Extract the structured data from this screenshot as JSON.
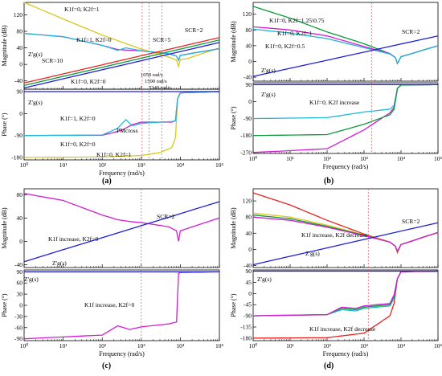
{
  "colors": {
    "red": "#e8231f",
    "green": "#0b9a38",
    "blue": "#1f1fd6",
    "magenta": "#d41cd4",
    "cyan": "#20b8d6",
    "yellow": "#d8c81e",
    "guide": "#e05050"
  },
  "chart_data": [
    {
      "panel": "(a)",
      "type": "line",
      "magnitude": {
        "ylabel": "Magnitude (dB)",
        "ylim": [
          -60,
          150
        ],
        "yticks": [
          "-40",
          "0",
          "40",
          "80",
          "120"
        ],
        "annotations": [
          "K1f=0, K2f=1",
          "K1f=1, K2f=0",
          "SCR=5",
          "SCR=2",
          "SCR=10",
          "Z'g(s)",
          "K1f=0, K2f=0",
          "1050 rad/s",
          "1590 rad/s",
          "3340 rad/s"
        ],
        "series": [
          {
            "name": "K1f=0, K2f=1",
            "color": "yellow",
            "x": [
              1,
              10,
              100,
              1000,
              5000,
              8000,
              9000,
              10000,
              15000,
              100000
            ],
            "y": [
              150,
              110,
              71,
              37,
              18,
              10,
              -5,
              12,
              14,
              40
            ]
          },
          {
            "name": "K1f=0, K2f=0",
            "color": "magenta",
            "x": [
              1,
              10,
              100,
              250,
              500,
              1000,
              5000,
              8000,
              9000,
              10000,
              100000
            ],
            "y": [
              75,
              67,
              46,
              36,
              34,
              33,
              26,
              20,
              10,
              22,
              38
            ]
          },
          {
            "name": "K1f=1, K2f=0",
            "color": "cyan",
            "x": [
              1,
              10,
              100,
              250,
              400,
              1000,
              5000,
              8000,
              9000,
              10000,
              100000
            ],
            "y": [
              75,
              67,
              46,
              34,
              40,
              33,
              26,
              20,
              10,
              22,
              38
            ]
          },
          {
            "name": "SCR=2",
            "color": "red",
            "x": [
              1,
              100000
            ],
            "y": [
              -45,
              65
            ]
          },
          {
            "name": "SCR=5",
            "color": "green",
            "x": [
              1,
              100000
            ],
            "y": [
              -51,
              59
            ]
          },
          {
            "name": "SCR=10",
            "color": "blue",
            "x": [
              1,
              100000
            ],
            "y": [
              -57,
              53
            ]
          }
        ]
      },
      "phase": {
        "ylabel": "Phase (°)",
        "ylim": [
          -190,
          100
        ],
        "yticks": [
          "-180",
          "-90",
          "0",
          "90"
        ],
        "xlabel": "Frequency (rad/s)",
        "annotations": [
          "Z'g(s)",
          "K1f=1, K2f=0",
          "PMcross",
          "K1f=0, K2f=0",
          "K1f=0, K2f=1"
        ],
        "series": [
          {
            "name": "K1f=0, K2f=1",
            "color": "yellow",
            "x": [
              1,
              100,
              1000,
              3000,
              6000,
              7500,
              8500,
              10000,
              100000
            ],
            "y": [
              -180,
              -178,
              -172,
              -160,
              -140,
              -100,
              60,
              85,
              90
            ]
          },
          {
            "name": "K1f=0, K2f=0",
            "color": "magenta",
            "x": [
              1,
              100,
              300,
              600,
              1000,
              3000,
              6000,
              7500,
              8500,
              10000,
              100000
            ],
            "y": [
              -90,
              -89,
              -70,
              -45,
              -35,
              -35,
              -35,
              -30,
              60,
              85,
              90
            ]
          },
          {
            "name": "K1f=1, K2f=0",
            "color": "cyan",
            "x": [
              1,
              100,
              250,
              400,
              600,
              1000,
              3000,
              6000,
              7500,
              8500,
              10000,
              100000
            ],
            "y": [
              -90,
              -88,
              -60,
              -25,
              -50,
              -40,
              -35,
              -33,
              -30,
              60,
              85,
              90
            ]
          },
          {
            "name": "Z'g(s)",
            "color": "blue",
            "x": [
              1,
              100000
            ],
            "y": [
              90,
              90
            ]
          }
        ]
      }
    },
    {
      "panel": "(b)",
      "type": "line",
      "magnitude": {
        "ylabel": "Magnitude (dB)",
        "ylim": [
          -50,
          150
        ],
        "yticks": [
          "-40",
          "0",
          "40",
          "80",
          "120"
        ],
        "annotations": [
          "K1f=0, K2f=1.25\\0.75",
          "K1f=0, K2f=1",
          "K1f=0, K2f=0.5",
          "SCR=2",
          "Z'g(s)"
        ],
        "series": [
          {
            "name": "K2f=1.25",
            "color": "green",
            "x": [
              1,
              10,
              100,
              1000,
              5000,
              7000,
              8000,
              10000,
              100000
            ],
            "y": [
              140,
              110,
              75,
              45,
              20,
              10,
              -5,
              12,
              40
            ]
          },
          {
            "name": "K2f=1",
            "color": "magenta",
            "x": [
              1,
              10,
              100,
              1000,
              5000,
              7000,
              8000,
              10000,
              100000
            ],
            "y": [
              88,
              80,
              65,
              38,
              20,
              10,
              -5,
              12,
              40
            ]
          },
          {
            "name": "K2f=0.5",
            "color": "cyan",
            "x": [
              1,
              10,
              100,
              1000,
              5000,
              7000,
              8000,
              10000,
              100000
            ],
            "y": [
              82,
              72,
              58,
              35,
              19,
              10,
              -5,
              12,
              40
            ]
          },
          {
            "name": "SCR=2",
            "color": "blue",
            "x": [
              1,
              100000
            ],
            "y": [
              -38,
              65
            ]
          }
        ]
      },
      "phase": {
        "ylabel": "Phase (°)",
        "ylim": [
          -275,
          100
        ],
        "yticks": [
          "-270",
          "-180",
          "-90",
          "0",
          "90"
        ],
        "xlabel": "Frequency (rad/s)",
        "annotations": [
          "Z'g(s)",
          "K1f=0, K2f increase"
        ],
        "series": [
          {
            "name": "K2f=0.5",
            "color": "cyan",
            "x": [
              1,
              100,
              1000,
              5000,
              6500,
              8000,
              10000,
              100000
            ],
            "y": [
              -90,
              -85,
              -55,
              -40,
              -20,
              70,
              88,
              90
            ]
          },
          {
            "name": "K2f=1",
            "color": "magenta",
            "x": [
              1,
              100,
              1000,
              5000,
              6500,
              8000,
              10000,
              100000
            ],
            "y": [
              -270,
              -250,
              -150,
              -60,
              -30,
              70,
              88,
              90
            ]
          },
          {
            "name": "K2f=1.25",
            "color": "green",
            "x": [
              1,
              100,
              1000,
              5000,
              6500,
              8000,
              10000,
              100000
            ],
            "y": [
              -180,
              -175,
              -120,
              -70,
              -40,
              70,
              88,
              90
            ]
          },
          {
            "name": "Z'g(s)",
            "color": "blue",
            "x": [
              1,
              100000
            ],
            "y": [
              90,
              90
            ]
          }
        ]
      }
    },
    {
      "panel": "(c)",
      "type": "line",
      "magnitude": {
        "ylabel": "Magnitude (dB)",
        "ylim": [
          -45,
          90
        ],
        "yticks": [
          "-40",
          "0",
          "40",
          "80"
        ],
        "annotations": [
          "SCR=2",
          "K1f increase, K2f=0",
          "Z'g(s)"
        ],
        "series": [
          {
            "name": "K1f increase",
            "color": "magenta",
            "x": [
              1,
              10,
              100,
              250,
              500,
              1000,
              5000,
              8000,
              9000,
              10000,
              100000
            ],
            "y": [
              82,
              70,
              45,
              37,
              34,
              32,
              25,
              18,
              0,
              18,
              40
            ]
          },
          {
            "name": "SCR=2",
            "color": "blue",
            "x": [
              1,
              100000
            ],
            "y": [
              -35,
              68
            ]
          }
        ]
      },
      "phase": {
        "ylabel": "Phase (°)",
        "ylim": [
          -95,
          95
        ],
        "yticks": [
          "-90",
          "-60",
          "-30",
          "0",
          "30",
          "60",
          "90"
        ],
        "xlabel": "Frequency (rad/s)",
        "annotations": [
          "Z'g(s)",
          "K1f increase, K2f=0"
        ],
        "series": [
          {
            "name": "K1f increase",
            "color": "magenta",
            "x": [
              1,
              100,
              250,
              500,
              1000,
              5000,
              8000,
              9000,
              10000,
              100000
            ],
            "y": [
              -90,
              -80,
              -55,
              -65,
              -58,
              -50,
              -45,
              85,
              88,
              90
            ]
          },
          {
            "name": "Z'g(s)",
            "color": "blue",
            "x": [
              1,
              100000
            ],
            "y": [
              90,
              90
            ]
          }
        ]
      }
    },
    {
      "panel": "(d)",
      "type": "line",
      "magnitude": {
        "ylabel": "Magnitude (dB)",
        "ylim": [
          -45,
          150
        ],
        "yticks": [
          "-40",
          "0",
          "40",
          "80",
          "120"
        ],
        "annotations": [
          "K1f increase, K2f decrease",
          "SCR=2",
          "Z'g(s)"
        ],
        "series": [
          {
            "name": "red",
            "color": "red",
            "x": [
              1,
              10,
              100,
              1000,
              5000,
              7000,
              8000,
              10000,
              100000
            ],
            "y": [
              140,
              110,
              72,
              38,
              18,
              8,
              -8,
              12,
              42
            ]
          },
          {
            "name": "yellow",
            "color": "yellow",
            "x": [
              1,
              10,
              100,
              1000,
              5000,
              7000,
              8000,
              10000,
              100000
            ],
            "y": [
              90,
              80,
              60,
              36,
              18,
              8,
              -6,
              12,
              42
            ]
          },
          {
            "name": "green",
            "color": "green",
            "x": [
              1,
              10,
              100,
              1000,
              5000,
              7000,
              8000,
              10000,
              100000
            ],
            "y": [
              85,
              76,
              57,
              35,
              18,
              8,
              -5,
              12,
              42
            ]
          },
          {
            "name": "magenta",
            "color": "magenta",
            "x": [
              1,
              10,
              100,
              1000,
              5000,
              7000,
              8000,
              10000,
              100000
            ],
            "y": [
              80,
              72,
              55,
              34,
              18,
              8,
              -4,
              12,
              42
            ]
          },
          {
            "name": "SCR=2",
            "color": "blue",
            "x": [
              1,
              100000
            ],
            "y": [
              -38,
              66
            ]
          }
        ]
      },
      "phase": {
        "ylabel": "Phase (°)",
        "ylim": [
          -190,
          95
        ],
        "yticks": [
          "-180",
          "-135",
          "-90",
          "-45",
          "0",
          "45",
          "90"
        ],
        "xlabel": "Frequency (rad/s)",
        "annotations": [
          "Z'g(s)",
          "K1f increase, K2f decrease"
        ],
        "series": [
          {
            "name": "red",
            "color": "red",
            "x": [
              1,
              100,
              1000,
              5000,
              6500,
              8000,
              10000,
              100000
            ],
            "y": [
              -180,
              -178,
              -160,
              -90,
              -40,
              60,
              88,
              90
            ]
          },
          {
            "name": "cyan",
            "color": "cyan",
            "x": [
              1,
              100,
              250,
              600,
              1000,
              5000,
              6500,
              8000,
              10000,
              100000
            ],
            "y": [
              -90,
              -85,
              -65,
              -70,
              -60,
              -50,
              -20,
              60,
              88,
              90
            ]
          },
          {
            "name": "green",
            "color": "green",
            "x": [
              1,
              100,
              250,
              600,
              1000,
              5000,
              6500,
              8000,
              10000,
              100000
            ],
            "y": [
              -90,
              -85,
              -60,
              -65,
              -55,
              -45,
              -10,
              60,
              88,
              90
            ]
          },
          {
            "name": "magenta",
            "color": "magenta",
            "x": [
              1,
              100,
              250,
              600,
              1000,
              5000,
              6500,
              8000,
              10000,
              100000
            ],
            "y": [
              -90,
              -85,
              -55,
              -60,
              -50,
              -40,
              -5,
              60,
              88,
              90
            ]
          },
          {
            "name": "Z'g(s)",
            "color": "blue",
            "x": [
              1,
              100000
            ],
            "y": [
              90,
              90
            ]
          }
        ]
      }
    }
  ],
  "xticks": [
    "10⁰",
    "10¹",
    "10²",
    "10³",
    "10⁴",
    "10⁵"
  ],
  "labels": {
    "a": "(a)",
    "b": "(b)",
    "c": "(c)",
    "d": "(d)"
  }
}
